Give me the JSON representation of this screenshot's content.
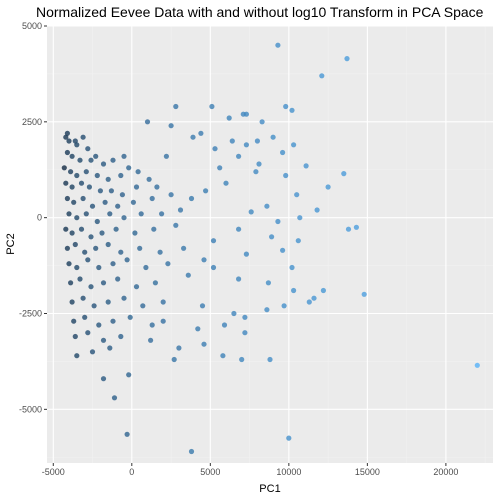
{
  "chart_data": {
    "type": "scatter",
    "title": "Normalized Eevee Data with and without log10 Transform in PCA Space",
    "xlabel": "PC1",
    "ylabel": "PC2",
    "xlim": [
      -5400,
      23000
    ],
    "ylim": [
      -6400,
      5000
    ],
    "xticks": [
      -5000,
      0,
      5000,
      10000,
      15000,
      20000
    ],
    "xtick_labels": [
      "-5000",
      "0",
      "5000",
      "10000",
      "15000",
      "20000"
    ],
    "yticks": [
      -5000,
      -2500,
      0,
      2500,
      5000
    ],
    "ytick_labels": [
      "-5000",
      "-2500",
      "0",
      "2500",
      "5000"
    ],
    "grid": true,
    "legend": "none",
    "colors": {
      "panel_bg": "#ebebeb",
      "point_low": "#132b43",
      "point_high": "#56b1f7"
    },
    "series": [
      {
        "points": [
          [
            9300,
            4500
          ],
          [
            13700,
            4150
          ],
          [
            12100,
            3700
          ],
          [
            2800,
            2900
          ],
          [
            5100,
            2900
          ],
          [
            9800,
            2900
          ],
          [
            10200,
            2800
          ],
          [
            7100,
            2700
          ],
          [
            7300,
            2700
          ],
          [
            6200,
            2600
          ],
          [
            8300,
            2500
          ],
          [
            1000,
            2500
          ],
          [
            2500,
            2400
          ],
          [
            4400,
            2200
          ],
          [
            3900,
            2100
          ],
          [
            8000,
            2000
          ],
          [
            9000,
            2100
          ],
          [
            6400,
            2000
          ],
          [
            10300,
            1900
          ],
          [
            7300,
            1900
          ],
          [
            5300,
            1800
          ],
          [
            9600,
            1700
          ],
          [
            6800,
            1600
          ],
          [
            2200,
            1600
          ],
          [
            8100,
            1400
          ],
          [
            11100,
            1350
          ],
          [
            5600,
            1300
          ],
          [
            7900,
            1200
          ],
          [
            9800,
            1100
          ],
          [
            13500,
            1150
          ],
          [
            12500,
            800
          ],
          [
            10500,
            600
          ],
          [
            6000,
            900
          ],
          [
            4700,
            700
          ],
          [
            3800,
            500
          ],
          [
            8600,
            300
          ],
          [
            11800,
            200
          ],
          [
            7600,
            150
          ],
          [
            10700,
            0
          ],
          [
            9300,
            -100
          ],
          [
            14300,
            -250
          ],
          [
            13800,
            -300
          ],
          [
            6800,
            -300
          ],
          [
            8900,
            -500
          ],
          [
            5200,
            -600
          ],
          [
            10600,
            -600
          ],
          [
            9600,
            -850
          ],
          [
            7300,
            -950
          ],
          [
            4600,
            -1100
          ],
          [
            10200,
            -1300
          ],
          [
            5200,
            -1300
          ],
          [
            3600,
            -1500
          ],
          [
            6800,
            -1600
          ],
          [
            8700,
            -1700
          ],
          [
            10300,
            -1900
          ],
          [
            12200,
            -1900
          ],
          [
            9700,
            -2300
          ],
          [
            4500,
            -2300
          ],
          [
            8600,
            -2400
          ],
          [
            6500,
            -2500
          ],
          [
            11600,
            -2100
          ],
          [
            11300,
            -2200
          ],
          [
            14800,
            -2000
          ],
          [
            2000,
            -2700
          ],
          [
            7200,
            -2600
          ],
          [
            5900,
            -2800
          ],
          [
            4200,
            -2900
          ],
          [
            7200,
            -3000
          ],
          [
            1200,
            -3200
          ],
          [
            4600,
            -3300
          ],
          [
            3000,
            -3400
          ],
          [
            5800,
            -3600
          ],
          [
            7000,
            -3700
          ],
          [
            8800,
            -3700
          ],
          [
            2700,
            -3700
          ],
          [
            22000,
            -3850
          ],
          [
            -1800,
            -4200
          ],
          [
            -200,
            -4100
          ],
          [
            -1100,
            -4700
          ],
          [
            -300,
            -5650
          ],
          [
            10000,
            -5750
          ],
          [
            3800,
            -6100
          ],
          [
            -4100,
            2200
          ],
          [
            -4000,
            2000
          ],
          [
            -4200,
            2100
          ],
          [
            -3600,
            2000
          ],
          [
            -3100,
            2100
          ],
          [
            -3500,
            1900
          ],
          [
            -2800,
            1800
          ],
          [
            -2300,
            1600
          ],
          [
            -4100,
            1700
          ],
          [
            -3800,
            1600
          ],
          [
            -3300,
            1500
          ],
          [
            -2600,
            1500
          ],
          [
            -1800,
            1400
          ],
          [
            -1200,
            1500
          ],
          [
            -500,
            1600
          ],
          [
            -200,
            1300
          ],
          [
            -4300,
            1300
          ],
          [
            -3900,
            1200
          ],
          [
            -3500,
            1100
          ],
          [
            -2900,
            1200
          ],
          [
            -2200,
            1100
          ],
          [
            -1500,
            1000
          ],
          [
            -700,
            1100
          ],
          [
            400,
            1200
          ],
          [
            1100,
            1000
          ],
          [
            -4200,
            900
          ],
          [
            -3800,
            800
          ],
          [
            -3200,
            900
          ],
          [
            -2700,
            800
          ],
          [
            -2000,
            700
          ],
          [
            -1300,
            700
          ],
          [
            -600,
            600
          ],
          [
            300,
            800
          ],
          [
            1600,
            800
          ],
          [
            -4100,
            500
          ],
          [
            -3700,
            400
          ],
          [
            -3100,
            500
          ],
          [
            -2500,
            300
          ],
          [
            -1700,
            400
          ],
          [
            -900,
            300
          ],
          [
            100,
            400
          ],
          [
            1300,
            500
          ],
          [
            2500,
            600
          ],
          [
            -4000,
            100
          ],
          [
            -3500,
            0
          ],
          [
            -2900,
            100
          ],
          [
            -2200,
            -100
          ],
          [
            -1400,
            100
          ],
          [
            -500,
            0
          ],
          [
            600,
            100
          ],
          [
            1900,
            100
          ],
          [
            3100,
            200
          ],
          [
            -4200,
            -300
          ],
          [
            -3800,
            -400
          ],
          [
            -3200,
            -300
          ],
          [
            -2600,
            -500
          ],
          [
            -1900,
            -400
          ],
          [
            -1000,
            -300
          ],
          [
            200,
            -400
          ],
          [
            1400,
            -300
          ],
          [
            2800,
            -200
          ],
          [
            -4100,
            -800
          ],
          [
            -3600,
            -700
          ],
          [
            -3000,
            -900
          ],
          [
            -2300,
            -800
          ],
          [
            -1500,
            -700
          ],
          [
            -700,
            -900
          ],
          [
            500,
            -800
          ],
          [
            1800,
            -900
          ],
          [
            3300,
            -800
          ],
          [
            -4000,
            -1200
          ],
          [
            -3500,
            -1300
          ],
          [
            -2800,
            -1100
          ],
          [
            -2100,
            -1300
          ],
          [
            -1200,
            -1200
          ],
          [
            -300,
            -1100
          ],
          [
            900,
            -1300
          ],
          [
            2300,
            -1200
          ],
          [
            -3900,
            -1700
          ],
          [
            -3300,
            -1600
          ],
          [
            -2600,
            -1800
          ],
          [
            -1800,
            -1700
          ],
          [
            -900,
            -1600
          ],
          [
            300,
            -1800
          ],
          [
            1500,
            -1700
          ],
          [
            -3800,
            -2200
          ],
          [
            -3100,
            -2100
          ],
          [
            -2400,
            -2300
          ],
          [
            -1500,
            -2200
          ],
          [
            -500,
            -2100
          ],
          [
            700,
            -2300
          ],
          [
            2000,
            -2200
          ],
          [
            -3700,
            -2700
          ],
          [
            -3000,
            -2600
          ],
          [
            -2100,
            -2800
          ],
          [
            -1200,
            -2700
          ],
          [
            -100,
            -2600
          ],
          [
            1300,
            -2800
          ],
          [
            -3600,
            -3100
          ],
          [
            -2800,
            -3000
          ],
          [
            -1800,
            -3200
          ],
          [
            -700,
            -3100
          ],
          [
            -3500,
            -3600
          ],
          [
            -2500,
            -3500
          ],
          [
            -1400,
            -3400
          ]
        ]
      }
    ]
  }
}
